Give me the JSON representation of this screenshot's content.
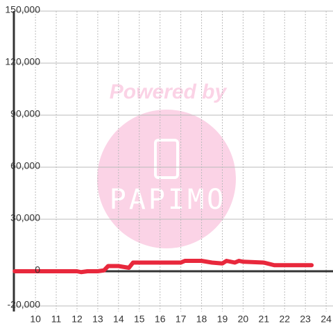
{
  "chart_data": {
    "type": "line",
    "x": [
      9,
      12,
      12.2,
      12.5,
      13,
      13.3,
      13.5,
      14,
      14.5,
      14.7,
      17,
      17.2,
      18,
      18.5,
      19,
      19.2,
      19.6,
      19.8,
      20,
      21,
      21.5,
      22,
      23.3
    ],
    "series": [
      {
        "color": "#e8283c",
        "values": [
          0,
          0,
          -500,
          0,
          0,
          500,
          3000,
          3000,
          2000,
          5000,
          5000,
          6000,
          6000,
          5000,
          4500,
          6000,
          5000,
          6000,
          5500,
          5000,
          3500,
          3500,
          3500
        ]
      }
    ],
    "xlim": [
      8.96,
      24.33
    ],
    "xticks": [
      10,
      11,
      12,
      13,
      14,
      15,
      16,
      17,
      18,
      19,
      20,
      21,
      22,
      23,
      24
    ],
    "ylim": [
      -20000,
      150000
    ],
    "yticks": [
      {
        "value": -20000,
        "label": "-20,000"
      },
      0,
      {
        "value": 30000,
        "label": "30,000"
      },
      {
        "value": 60000,
        "label": "60,000"
      },
      {
        "value": 90000,
        "label": "90,000"
      },
      {
        "value": 120000,
        "label": "120,000"
      },
      {
        "value": 150000,
        "label": "150,000"
      }
    ],
    "grid": true,
    "watermark": {
      "line1": "Powered by",
      "line2": "PAPIMO"
    }
  }
}
